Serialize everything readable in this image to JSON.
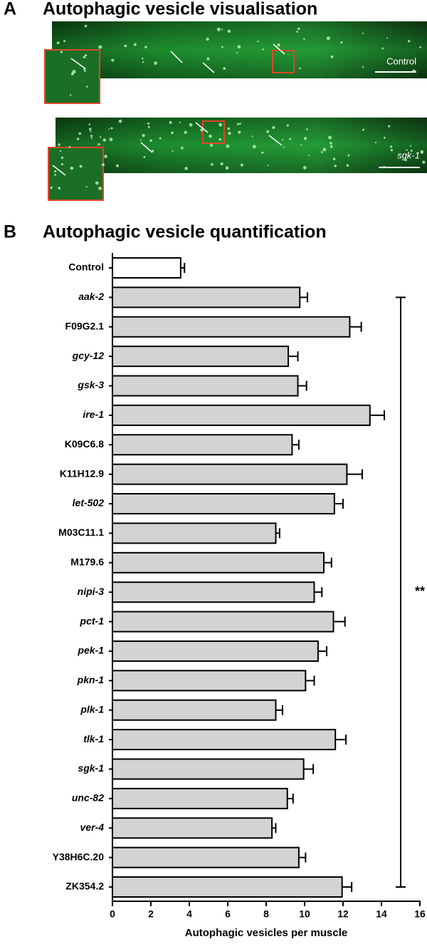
{
  "panel_a": {
    "label": "A",
    "title": "Autophagic vesicle visualisation",
    "images": [
      {
        "label": "Control"
      },
      {
        "label": "sgk-1"
      }
    ]
  },
  "chart_data": {
    "panel_label": "B",
    "type": "bar",
    "orientation": "horizontal",
    "title": "Autophagic vesicle quantification",
    "categories": [
      "Control",
      "aak-2",
      "F09G2.1",
      "gcy-12",
      "gsk-3",
      "ire-1",
      "K09C6.8",
      "K11H12.9",
      "let-502",
      "M03C11.1",
      "M179.6",
      "nipi-3",
      "pct-1",
      "pek-1",
      "pkn-1",
      "plk-1",
      "tlk-1",
      "sgk-1",
      "unc-82",
      "ver-4",
      "Y38H6C.20",
      "ZK354.2"
    ],
    "values": [
      3.55,
      9.75,
      12.35,
      9.15,
      9.65,
      13.4,
      9.35,
      12.2,
      11.55,
      8.5,
      11.0,
      10.5,
      11.5,
      10.7,
      10.05,
      8.5,
      11.6,
      9.95,
      9.1,
      8.3,
      9.7,
      11.95
    ],
    "errors": [
      0.2,
      0.4,
      0.6,
      0.5,
      0.45,
      0.75,
      0.35,
      0.8,
      0.45,
      0.2,
      0.4,
      0.4,
      0.6,
      0.45,
      0.45,
      0.35,
      0.55,
      0.5,
      0.3,
      0.2,
      0.35,
      0.5
    ],
    "colors": [
      "#ffffff",
      "#d3d3d3",
      "#d3d3d3",
      "#d3d3d3",
      "#d3d3d3",
      "#d3d3d3",
      "#d3d3d3",
      "#d3d3d3",
      "#d3d3d3",
      "#d3d3d3",
      "#d3d3d3",
      "#d3d3d3",
      "#d3d3d3",
      "#d3d3d3",
      "#d3d3d3",
      "#d3d3d3",
      "#d3d3d3",
      "#d3d3d3",
      "#d3d3d3",
      "#d3d3d3",
      "#d3d3d3",
      "#d3d3d3"
    ],
    "xlabel": "Autophagic vesicles per muscle",
    "xlim": [
      0,
      16
    ],
    "xticks": [
      0,
      2,
      4,
      6,
      8,
      10,
      12,
      14,
      16
    ],
    "annotations": [
      {
        "text": "**"
      }
    ]
  }
}
